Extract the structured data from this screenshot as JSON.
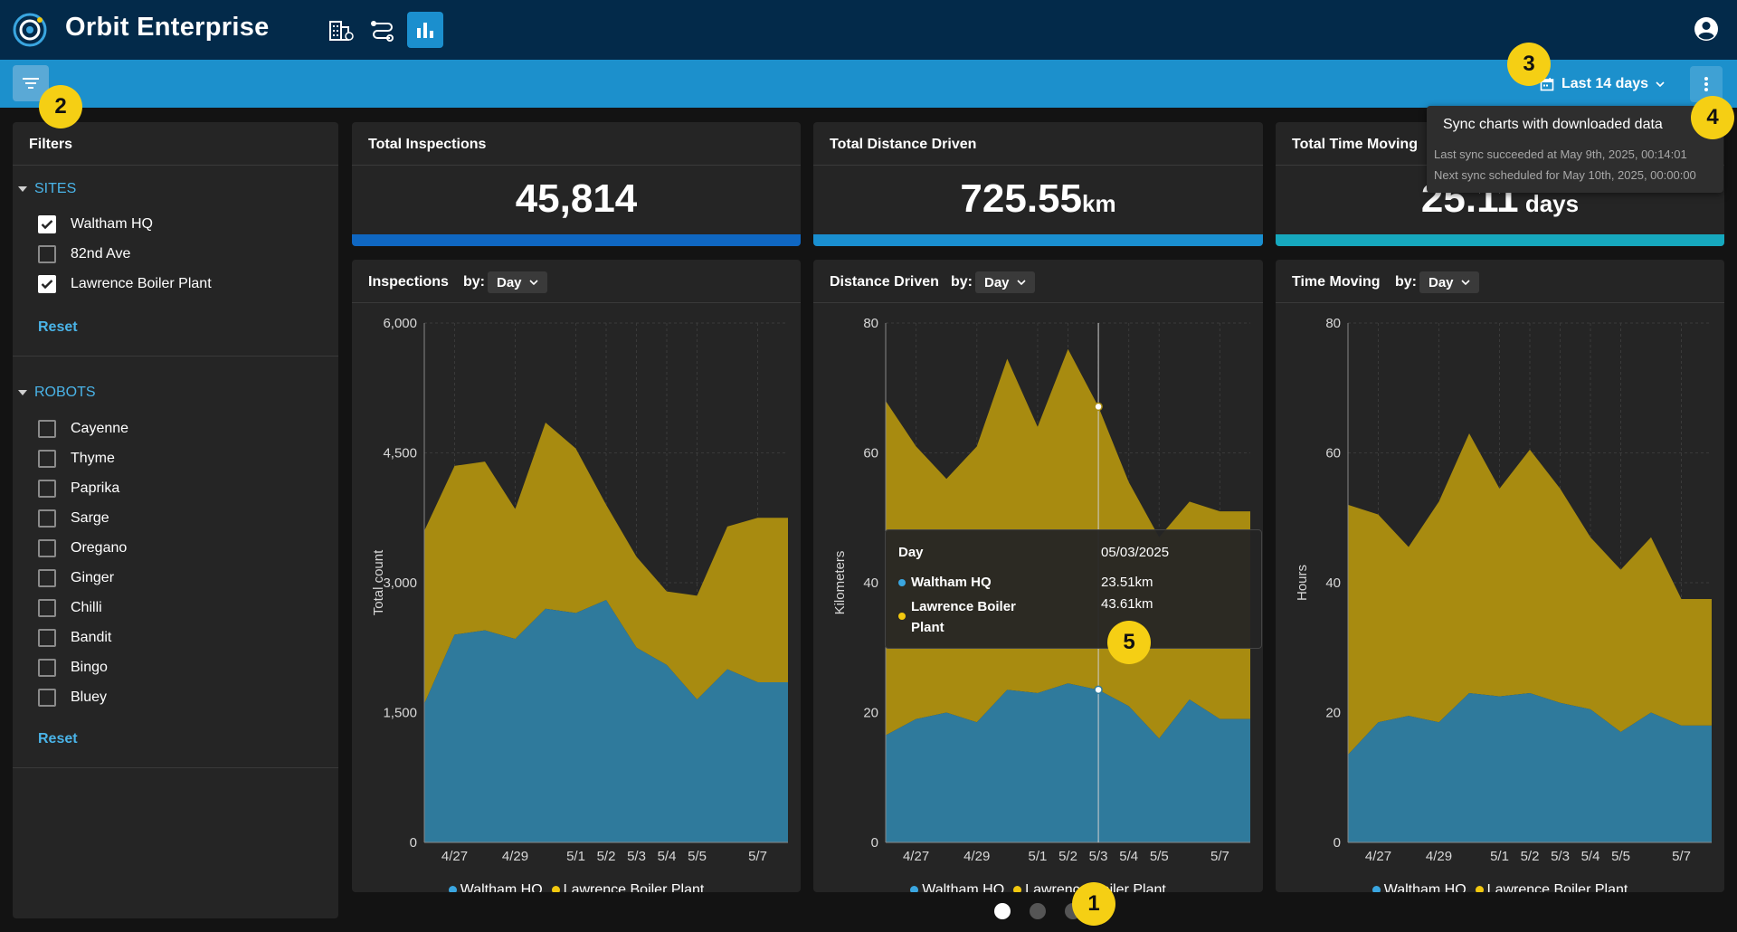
{
  "app": {
    "title": "Orbit Enterprise"
  },
  "nav": [
    {
      "icon": "sites-icon",
      "active": false
    },
    {
      "icon": "missions-icon",
      "active": false
    },
    {
      "icon": "analytics-icon",
      "active": true
    }
  ],
  "toolbar": {
    "date_range": "Last 14 days"
  },
  "sync_popover": {
    "title": "Sync charts with downloaded data",
    "last": "Last sync succeeded at May 9th, 2025, 00:14:01",
    "next": "Next sync scheduled for May 10th, 2025, 00:00:00"
  },
  "sidebar": {
    "title": "Filters",
    "sites": {
      "label": "SITES",
      "items": [
        {
          "label": "Waltham HQ",
          "checked": true
        },
        {
          "label": "82nd Ave",
          "checked": false
        },
        {
          "label": "Lawrence Boiler Plant",
          "checked": true
        }
      ],
      "reset": "Reset"
    },
    "robots": {
      "label": "ROBOTS",
      "items": [
        {
          "label": "Cayenne",
          "checked": false
        },
        {
          "label": "Thyme",
          "checked": false
        },
        {
          "label": "Paprika",
          "checked": false
        },
        {
          "label": "Sarge",
          "checked": false
        },
        {
          "label": "Oregano",
          "checked": false
        },
        {
          "label": "Ginger",
          "checked": false
        },
        {
          "label": "Chilli",
          "checked": false
        },
        {
          "label": "Bandit",
          "checked": false
        },
        {
          "label": "Bingo",
          "checked": false
        },
        {
          "label": "Bluey",
          "checked": false
        }
      ],
      "reset": "Reset"
    }
  },
  "stats": [
    {
      "title": "Total Inspections",
      "value": "45,814",
      "unit": "",
      "color": "#0f67c2"
    },
    {
      "title": "Total Distance Driven",
      "value": "725.55",
      "unit": "km",
      "color": "#1a8fd0"
    },
    {
      "title": "Total Time Moving",
      "value": "25.11",
      "unit": " days",
      "color": "#16a8be"
    }
  ],
  "charts_meta": {
    "by_label": "by:",
    "by_value": "Day",
    "titles": [
      "Inspections",
      "Distance Driven",
      "Time Moving"
    ],
    "legend": [
      "Waltham HQ",
      "Lawrence Boiler Plant"
    ]
  },
  "colors": {
    "waltham": "#2f7a9c",
    "lawrence": "#a88b10",
    "waltham_dot": "#3aa6e0",
    "lawrence_dot": "#f2c80f"
  },
  "tooltip": {
    "label": "Day",
    "date": "05/03/2025",
    "series": [
      {
        "name": "Waltham HQ",
        "value": "23.51km"
      },
      {
        "name_line1": "Lawrence Boiler",
        "name_line2": "Plant",
        "value": "43.61km"
      }
    ]
  },
  "markers": [
    "1",
    "2",
    "3",
    "4",
    "5"
  ],
  "chart_data": [
    {
      "type": "area",
      "stacked": true,
      "title": "Inspections",
      "ylabel": "Total count",
      "ylim": [
        0,
        6000
      ],
      "yticks": [
        0,
        1500,
        3000,
        4500,
        6000
      ],
      "ytick_labels": [
        "0",
        "1,500",
        "3,000",
        "4,500",
        "6,000"
      ],
      "x": [
        "4/26",
        "4/27",
        "4/28",
        "4/29",
        "4/30",
        "5/1",
        "5/2",
        "5/3",
        "5/4",
        "5/5",
        "5/6",
        "5/7",
        "5/8"
      ],
      "xtick_labels": [
        "4/27",
        "4/29",
        "5/1",
        "5/2",
        "5/3",
        "5/4",
        "5/5",
        "5/7"
      ],
      "xtick_x": [
        "4/27",
        "4/29",
        "5/1",
        "5/2",
        "5/3",
        "5/4",
        "5/5",
        "5/7"
      ],
      "series": [
        {
          "name": "Waltham HQ",
          "values": [
            1600,
            2400,
            2450,
            2350,
            2700,
            2650,
            2800,
            2250,
            2050,
            1650,
            2000,
            1850,
            1850
          ]
        },
        {
          "name": "Lawrence Boiler Plant",
          "values": [
            2000,
            1950,
            1950,
            1500,
            2150,
            1900,
            1100,
            1050,
            850,
            1200,
            1650,
            1900,
            1900
          ]
        }
      ]
    },
    {
      "type": "area",
      "stacked": true,
      "title": "Distance Driven",
      "ylabel": "Kilometers",
      "ylim": [
        0,
        80
      ],
      "yticks": [
        0,
        20,
        40,
        60,
        80
      ],
      "ytick_labels": [
        "0",
        "20",
        "40",
        "60",
        "80"
      ],
      "x": [
        "4/26",
        "4/27",
        "4/28",
        "4/29",
        "4/30",
        "5/1",
        "5/2",
        "5/3",
        "5/4",
        "5/5",
        "5/6",
        "5/7",
        "5/8"
      ],
      "xtick_labels": [
        "4/27",
        "4/29",
        "5/1",
        "5/2",
        "5/3",
        "5/4",
        "5/5",
        "5/7"
      ],
      "xtick_x": [
        "4/27",
        "4/29",
        "5/1",
        "5/2",
        "5/3",
        "5/4",
        "5/5",
        "5/7"
      ],
      "series": [
        {
          "name": "Waltham HQ",
          "values": [
            16.5,
            19,
            20,
            18.5,
            23.5,
            23,
            24.5,
            23.51,
            21,
            16,
            22,
            19,
            19
          ]
        },
        {
          "name": "Lawrence Boiler Plant",
          "values": [
            51.5,
            42,
            36,
            42.5,
            51,
            41,
            51.5,
            43.61,
            34.5,
            31,
            30.5,
            32,
            32
          ]
        }
      ]
    },
    {
      "type": "area",
      "stacked": true,
      "title": "Time Moving",
      "ylabel": "Hours",
      "ylim": [
        0,
        80
      ],
      "yticks": [
        0,
        20,
        40,
        60,
        80
      ],
      "ytick_labels": [
        "0",
        "20",
        "40",
        "60",
        "80"
      ],
      "x": [
        "4/26",
        "4/27",
        "4/28",
        "4/29",
        "4/30",
        "5/1",
        "5/2",
        "5/3",
        "5/4",
        "5/5",
        "5/6",
        "5/7",
        "5/8"
      ],
      "xtick_labels": [
        "4/27",
        "4/29",
        "5/1",
        "5/2",
        "5/3",
        "5/4",
        "5/5",
        "5/7"
      ],
      "xtick_x": [
        "4/27",
        "4/29",
        "5/1",
        "5/2",
        "5/3",
        "5/4",
        "5/5",
        "5/7"
      ],
      "series": [
        {
          "name": "Waltham HQ",
          "values": [
            13.5,
            18.5,
            19.5,
            18.5,
            23,
            22.5,
            23,
            21.5,
            20.5,
            17,
            20,
            18,
            18
          ]
        },
        {
          "name": "Lawrence Boiler Plant",
          "values": [
            38.5,
            32,
            26,
            34,
            40,
            32,
            37.5,
            33,
            26.5,
            25,
            27,
            19.5,
            19.5
          ]
        }
      ]
    }
  ]
}
